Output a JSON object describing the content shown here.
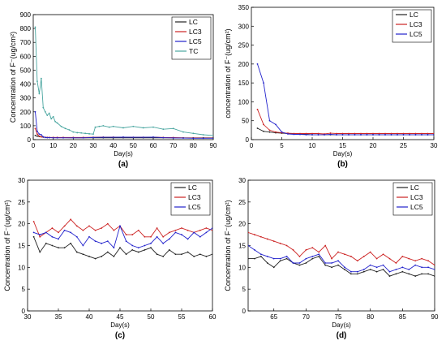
{
  "chart_data": [
    {
      "panel": "(a)",
      "type": "line",
      "xlabel": "Day(s)",
      "ylabel": "Concentration of F⁻(ug/cm²)",
      "xlim": [
        0,
        90
      ],
      "ylim": [
        0,
        900
      ],
      "xticks": [
        0,
        10,
        20,
        30,
        40,
        50,
        60,
        70,
        80,
        90
      ],
      "yticks": [
        0,
        100,
        200,
        300,
        400,
        500,
        600,
        700,
        800,
        900
      ],
      "legend": "top-right",
      "series": [
        {
          "name": "LC",
          "color": "#222222",
          "x": [
            1,
            2,
            3,
            4,
            5,
            6,
            7,
            8,
            10,
            12,
            15,
            20,
            25,
            30,
            35,
            40,
            45,
            50,
            55,
            60,
            65,
            70,
            75,
            80,
            85,
            90
          ],
          "y": [
            30,
            25,
            22,
            20,
            18,
            16,
            15,
            15,
            14,
            14,
            14,
            13,
            13,
            13,
            13,
            13,
            13,
            13,
            13,
            13,
            13,
            13,
            13,
            13,
            13,
            13
          ]
        },
        {
          "name": "LC3",
          "color": "#cc2222",
          "x": [
            1,
            2,
            3,
            4,
            5,
            6,
            7,
            8,
            10,
            12,
            15,
            20,
            25,
            30,
            35,
            40,
            45,
            50,
            55,
            60,
            65,
            70,
            75,
            80,
            85,
            90
          ],
          "y": [
            80,
            40,
            25,
            20,
            18,
            17,
            16,
            16,
            16,
            16,
            16,
            16,
            16,
            17,
            18,
            18,
            18,
            17,
            17,
            18,
            16,
            15,
            13,
            12,
            11,
            11
          ]
        },
        {
          "name": "LC5",
          "color": "#2222cc",
          "x": [
            1,
            2,
            3,
            4,
            5,
            6,
            7,
            8,
            10,
            12,
            15,
            20,
            25,
            30,
            35,
            40,
            45,
            50,
            55,
            60,
            65,
            70,
            75,
            80,
            85,
            90
          ],
          "y": [
            200,
            60,
            40,
            35,
            20,
            15,
            14,
            14,
            13,
            13,
            13,
            13,
            13,
            16,
            17,
            17,
            18,
            17,
            17,
            18,
            14,
            12,
            11,
            10,
            10,
            10
          ]
        },
        {
          "name": "TC",
          "color": "#4aa6a0",
          "x": [
            1,
            2,
            3,
            4,
            5,
            6,
            7,
            8,
            9,
            10,
            11,
            12,
            14,
            16,
            18,
            20,
            22,
            24,
            26,
            28,
            30,
            31,
            33,
            35,
            38,
            40,
            45,
            50,
            55,
            60,
            65,
            70,
            75,
            80,
            85,
            90
          ],
          "y": [
            810,
            420,
            330,
            440,
            230,
            200,
            175,
            190,
            150,
            165,
            130,
            120,
            95,
            80,
            70,
            55,
            50,
            48,
            45,
            42,
            40,
            90,
            95,
            100,
            90,
            95,
            85,
            95,
            85,
            90,
            75,
            80,
            55,
            45,
            35,
            30
          ]
        }
      ]
    },
    {
      "panel": "(b)",
      "type": "line",
      "xlabel": "Day(s)",
      "ylabel": "concentration of F⁻(ug/cm²)",
      "xlim": [
        0,
        30
      ],
      "ylim": [
        0,
        350
      ],
      "xticks": [
        0,
        5,
        10,
        15,
        20,
        25,
        30
      ],
      "yticks": [
        0,
        50,
        100,
        150,
        200,
        250,
        300,
        350
      ],
      "legend": "top-right",
      "series": [
        {
          "name": "LC",
          "color": "#222222",
          "x": [
            1,
            2,
            3,
            4,
            5,
            6,
            7,
            8,
            9,
            10,
            11,
            12,
            13,
            14,
            15,
            16,
            17,
            18,
            19,
            20,
            21,
            22,
            23,
            24,
            25,
            26,
            27,
            28,
            29,
            30
          ],
          "y": [
            30,
            22,
            20,
            18,
            17,
            16,
            15,
            14,
            14,
            13,
            13,
            13,
            13,
            13,
            13,
            13,
            13,
            13,
            13,
            13,
            13,
            13,
            13,
            13,
            13,
            13,
            13,
            13,
            13,
            13
          ]
        },
        {
          "name": "LC3",
          "color": "#cc2222",
          "x": [
            1,
            2,
            3,
            4,
            5,
            6,
            7,
            8,
            9,
            10,
            11,
            12,
            13,
            14,
            15,
            16,
            17,
            18,
            19,
            20,
            21,
            22,
            23,
            24,
            25,
            26,
            27,
            28,
            29,
            30
          ],
          "y": [
            80,
            40,
            25,
            20,
            18,
            17,
            16,
            16,
            16,
            16,
            16,
            15,
            17,
            16,
            16,
            16,
            16,
            16,
            16,
            16,
            16,
            16,
            16,
            16,
            16,
            16,
            16,
            16,
            16,
            16
          ]
        },
        {
          "name": "LC5",
          "color": "#2222cc",
          "x": [
            1,
            2,
            3,
            4,
            5,
            6,
            7,
            8,
            9,
            10,
            11,
            12,
            13,
            14,
            15,
            16,
            17,
            18,
            19,
            20,
            21,
            22,
            23,
            24,
            25,
            26,
            27,
            28,
            29,
            30
          ],
          "y": [
            200,
            150,
            50,
            40,
            20,
            15,
            14,
            14,
            13,
            13,
            13,
            13,
            14,
            13,
            13,
            13,
            13,
            13,
            13,
            13,
            13,
            13,
            13,
            13,
            13,
            13,
            13,
            13,
            13,
            13
          ]
        }
      ]
    },
    {
      "panel": "(c)",
      "type": "line",
      "xlabel": "Day(s)",
      "ylabel": "Concentration of F⁻(ug/cm²)",
      "xlim": [
        30,
        60
      ],
      "ylim": [
        0,
        30
      ],
      "xticks": [
        30,
        35,
        40,
        45,
        50,
        55,
        60
      ],
      "yticks": [
        0,
        5,
        10,
        15,
        20,
        25,
        30
      ],
      "legend": "top-right",
      "series": [
        {
          "name": "LC",
          "color": "#222222",
          "x": [
            31,
            32,
            33,
            34,
            35,
            36,
            37,
            38,
            39,
            40,
            41,
            42,
            43,
            44,
            45,
            46,
            47,
            48,
            49,
            50,
            51,
            52,
            53,
            54,
            55,
            56,
            57,
            58,
            59,
            60
          ],
          "y": [
            17,
            13.5,
            15.5,
            15,
            14.5,
            14.5,
            15.5,
            13.5,
            13,
            12.5,
            12,
            12.5,
            13.5,
            12.5,
            14.5,
            13,
            14,
            13.5,
            14,
            14.5,
            13,
            12.5,
            14,
            13,
            13,
            13.5,
            12.5,
            13,
            12.5,
            13
          ]
        },
        {
          "name": "LC3",
          "color": "#cc2222",
          "x": [
            31,
            32,
            33,
            34,
            35,
            36,
            37,
            38,
            39,
            40,
            41,
            42,
            43,
            44,
            45,
            46,
            47,
            48,
            49,
            50,
            51,
            52,
            53,
            54,
            55,
            56,
            57,
            58,
            59,
            60
          ],
          "y": [
            20.5,
            17,
            18,
            19,
            18,
            19.5,
            21,
            19.5,
            18.5,
            19.5,
            18.5,
            19,
            20,
            18.5,
            19.5,
            17.5,
            17.5,
            18.5,
            17,
            17,
            19,
            17,
            18,
            18.5,
            19,
            18.5,
            18,
            18.5,
            19,
            18.5
          ]
        },
        {
          "name": "LC5",
          "color": "#2222cc",
          "x": [
            31,
            32,
            33,
            34,
            35,
            36,
            37,
            38,
            39,
            40,
            41,
            42,
            43,
            44,
            45,
            46,
            47,
            48,
            49,
            50,
            51,
            52,
            53,
            54,
            55,
            56,
            57,
            58,
            59,
            60
          ],
          "y": [
            18,
            17.5,
            18,
            17,
            16.5,
            18.5,
            18,
            17,
            15,
            17,
            16,
            15.5,
            16,
            14.5,
            19.5,
            16,
            15,
            14.5,
            15,
            15.5,
            17,
            15.5,
            16.5,
            18,
            17.5,
            16.5,
            18,
            17,
            18,
            19
          ]
        }
      ]
    },
    {
      "panel": "(d)",
      "type": "line",
      "xlabel": "Day(s)",
      "ylabel": "Concentration of F⁻(ug/cm²)",
      "xlim": [
        61,
        90
      ],
      "ylim": [
        0,
        30
      ],
      "xticks": [
        65,
        70,
        75,
        80,
        85,
        90
      ],
      "yticks": [
        0,
        5,
        10,
        15,
        20,
        25,
        30
      ],
      "legend": "top-right",
      "series": [
        {
          "name": "LC",
          "color": "#222222",
          "x": [
            61,
            62,
            63,
            64,
            65,
            66,
            67,
            68,
            69,
            70,
            71,
            72,
            73,
            74,
            75,
            76,
            77,
            78,
            79,
            80,
            81,
            82,
            83,
            84,
            85,
            86,
            87,
            88,
            89,
            90
          ],
          "y": [
            12,
            12,
            12.5,
            11,
            10,
            11.5,
            12,
            11,
            10.5,
            11,
            12,
            12.5,
            10.5,
            10,
            10.5,
            9.5,
            8.5,
            8.5,
            9,
            9.5,
            9,
            9.5,
            8,
            8.5,
            9,
            8.5,
            8,
            8.5,
            8.5,
            8
          ]
        },
        {
          "name": "LC3",
          "color": "#cc2222",
          "x": [
            61,
            62,
            63,
            64,
            65,
            66,
            67,
            68,
            69,
            70,
            71,
            72,
            73,
            74,
            75,
            76,
            77,
            78,
            79,
            80,
            81,
            82,
            83,
            84,
            85,
            86,
            87,
            88,
            89,
            90
          ],
          "y": [
            18,
            17.5,
            17,
            16.5,
            16,
            15.5,
            15,
            14,
            12.5,
            14,
            14.5,
            13.5,
            15,
            12,
            13.5,
            13,
            12.5,
            11.5,
            12.5,
            13.5,
            12,
            13,
            12,
            11,
            12.5,
            12,
            11.5,
            12,
            11.5,
            10.5
          ]
        },
        {
          "name": "LC5",
          "color": "#2222cc",
          "x": [
            61,
            62,
            63,
            64,
            65,
            66,
            67,
            68,
            69,
            70,
            71,
            72,
            73,
            74,
            75,
            76,
            77,
            78,
            79,
            80,
            81,
            82,
            83,
            84,
            85,
            86,
            87,
            88,
            89,
            90
          ],
          "y": [
            15,
            14,
            13,
            12.5,
            12,
            12,
            12.5,
            11,
            11,
            12,
            12.5,
            13,
            11,
            11,
            11.5,
            10,
            9,
            9,
            9.5,
            10.5,
            10,
            10.5,
            9,
            9.5,
            10,
            9.5,
            10.5,
            10,
            10,
            9.5
          ]
        }
      ]
    }
  ]
}
